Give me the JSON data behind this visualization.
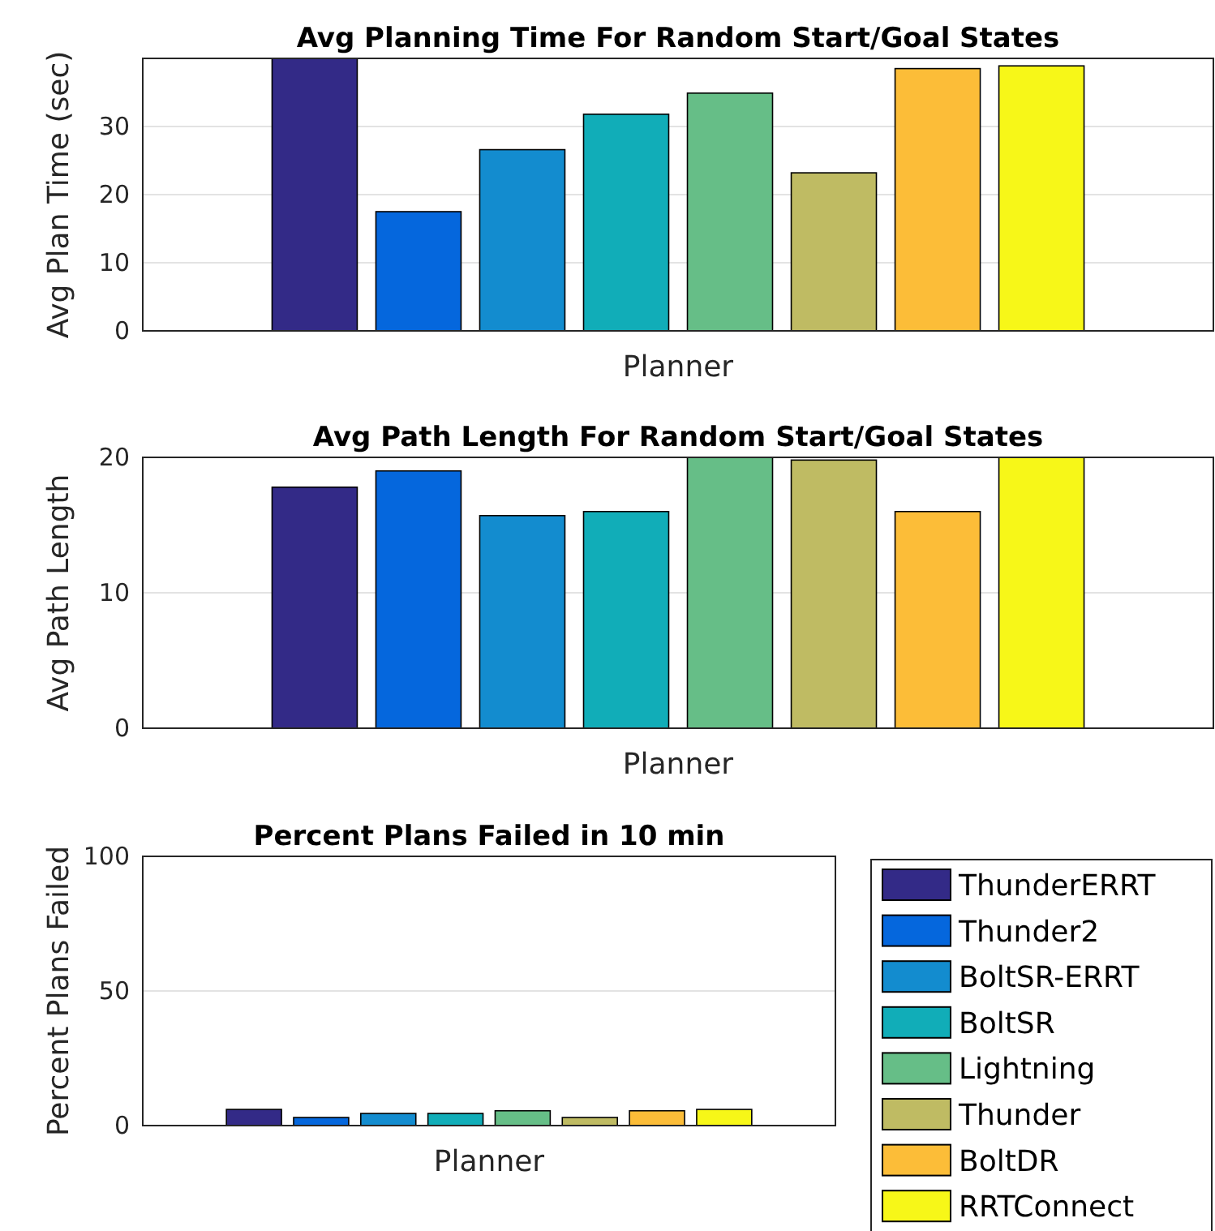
{
  "chart_data": [
    {
      "type": "bar",
      "title": "Avg Planning Time For Random Start/Goal States",
      "xlabel": "Planner",
      "ylabel": "Avg Plan Time (sec)",
      "categories": [
        null
      ],
      "ylim": [
        0,
        40
      ],
      "yticks": [
        0,
        10,
        20,
        30
      ],
      "grid": "y",
      "legend": false,
      "tick_labels": "y",
      "series": [
        {
          "color": "#332a87",
          "values": [
            40
          ]
        },
        {
          "color": "#0567dd",
          "values": [
            17.5
          ]
        },
        {
          "color": "#138ccf",
          "values": [
            26.6
          ]
        },
        {
          "color": "#11adb8",
          "values": [
            31.8
          ]
        },
        {
          "color": "#66be87",
          "values": [
            34.9
          ]
        },
        {
          "color": "#bfbb63",
          "values": [
            23.2
          ]
        },
        {
          "color": "#fcbd38",
          "values": [
            38.5
          ]
        },
        {
          "color": "#f7f718",
          "values": [
            38.9
          ]
        }
      ]
    },
    {
      "type": "bar",
      "title": "Avg Path Length For Random Start/Goal States",
      "xlabel": "Planner",
      "ylabel": "Avg Path Length",
      "categories": [
        null
      ],
      "ylim": [
        0,
        20
      ],
      "yticks": [
        0,
        10,
        20
      ],
      "grid": "y",
      "legend": false,
      "tick_labels": "y",
      "series": [
        {
          "color": "#332a87",
          "values": [
            17.8
          ]
        },
        {
          "color": "#0567dd",
          "values": [
            19.0
          ]
        },
        {
          "color": "#138ccf",
          "values": [
            15.7
          ]
        },
        {
          "color": "#11adb8",
          "values": [
            16.0
          ]
        },
        {
          "color": "#66be87",
          "values": [
            20
          ]
        },
        {
          "color": "#bfbb63",
          "values": [
            19.8
          ]
        },
        {
          "color": "#fcbd38",
          "values": [
            16.0
          ]
        },
        {
          "color": "#f7f718",
          "values": [
            20
          ]
        }
      ]
    },
    {
      "type": "bar",
      "title": "Percent Plans Failed in 10 min",
      "xlabel": "Planner",
      "ylabel": "Percent Plans Failed",
      "categories": [
        null
      ],
      "ylim": [
        0,
        100
      ],
      "yticks": [
        0,
        50,
        100
      ],
      "grid": "y",
      "legend": "right",
      "tick_labels": "y",
      "series": [
        {
          "name": "ThunderERRT",
          "color": "#332a87",
          "values": [
            6
          ]
        },
        {
          "name": "Thunder2",
          "color": "#0567dd",
          "values": [
            3
          ]
        },
        {
          "name": "BoltSR-ERRT",
          "color": "#138ccf",
          "values": [
            4.5
          ]
        },
        {
          "name": "BoltSR",
          "color": "#11adb8",
          "values": [
            4.5
          ]
        },
        {
          "name": "Lightning",
          "color": "#66be87",
          "values": [
            5.5
          ]
        },
        {
          "name": "Thunder",
          "color": "#bfbb63",
          "values": [
            3
          ]
        },
        {
          "name": "BoltDR",
          "color": "#fcbd38",
          "values": [
            5.5
          ]
        },
        {
          "name": "RRTConnect",
          "color": "#f7f718",
          "values": [
            6
          ]
        }
      ]
    }
  ]
}
